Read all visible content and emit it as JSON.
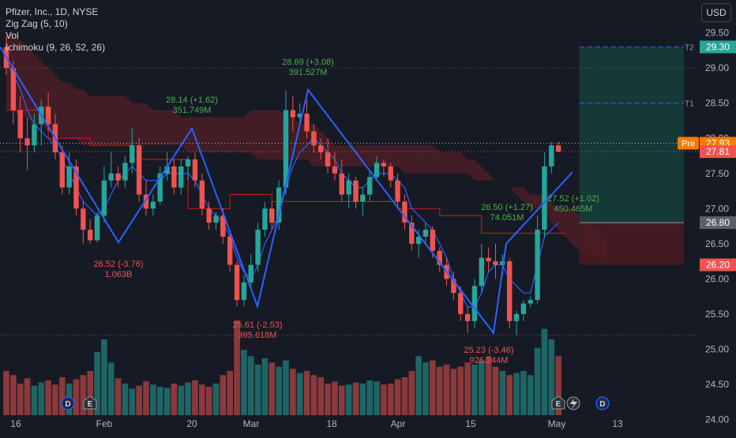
{
  "header": {
    "symbol_line": "Pfizer, Inc., 1D, NYSE",
    "indicators": [
      "Zig Zag (5, 10)",
      "Vol",
      "Ichimoku (9, 26, 52, 26)"
    ],
    "currency": "USD"
  },
  "colors": {
    "background": "#161a25",
    "up": "#26a69a",
    "down": "#ef5350",
    "zigzag": "#2962ff",
    "conversion": "#2962ff",
    "base": "#b71c1c",
    "cloud_bear": "#4a1f26",
    "cloud_bull": "#1b3d3a",
    "label_up": "#4caf50",
    "label_down": "#ef5350",
    "target_zone": "#15403a",
    "stop_zone": "#4a1b22"
  },
  "chart_data": {
    "type": "candlestick",
    "symbol": "Pfizer, Inc.",
    "interval": "1D",
    "exchange": "NYSE",
    "y_axis": {
      "ticks": [
        24.0,
        24.5,
        25.0,
        25.5,
        26.0,
        26.5,
        27.0,
        27.5,
        28.0,
        28.5,
        29.0,
        29.5
      ],
      "range": [
        23.95,
        29.9
      ]
    },
    "x_axis": {
      "tick_labels": [
        "16",
        "Feb",
        "20",
        "Mar",
        "18",
        "Apr",
        "15",
        "May",
        "13"
      ]
    },
    "price_labels": [
      {
        "text": "29.30",
        "value": 29.3,
        "type": "target"
      },
      {
        "text": "27.93",
        "value": 27.93,
        "type": "premarket",
        "tag": "Pre"
      },
      {
        "text": "27.81",
        "value": 27.81,
        "type": "last"
      },
      {
        "text": "26.80",
        "value": 26.8,
        "type": "entry"
      },
      {
        "text": "26.20",
        "value": 26.2,
        "type": "stop"
      }
    ],
    "position_tool": {
      "entry": 26.8,
      "t1": 28.5,
      "t2": 29.3,
      "stop": 26.2,
      "labels": [
        "T1",
        "T2"
      ]
    },
    "zigzag": [
      {
        "date": "2024-01-09",
        "price": 29.3
      },
      {
        "date": "2024-01-31",
        "price": 26.52
      },
      {
        "date": "2024-02-21",
        "price": 28.14
      },
      {
        "date": "2024-03-04",
        "price": 25.61
      },
      {
        "date": "2024-03-13",
        "price": 28.69
      },
      {
        "date": "2024-04-17",
        "price": 25.23
      },
      {
        "date": "2024-04-22",
        "price": 26.5
      },
      {
        "date": "2024-05-01",
        "price": 27.52
      }
    ],
    "zigzag_labels": [
      {
        "line1": "28.14 (+1.62)",
        "line2": "351.749M",
        "dir": "up"
      },
      {
        "line1": "28.69 (+3.08)",
        "line2": "391.527M",
        "dir": "up"
      },
      {
        "line1": "26.50 (+1.27)",
        "line2": "74.051M",
        "dir": "up"
      },
      {
        "line1": "26.52 (-3.76)",
        "line2": "1.063B",
        "dir": "down"
      },
      {
        "line1": "25.61 (-2.53)",
        "line2": "395.618M",
        "dir": "down"
      },
      {
        "line1": "25.23 (-3.46)",
        "line2": "926.244M",
        "dir": "down"
      },
      {
        "line1": "27.52 (+1.02)",
        "line2": "450.465M",
        "dir": "up"
      }
    ],
    "candles": [
      {
        "o": 29.3,
        "h": 29.45,
        "l": 28.9,
        "c": 29.0
      },
      {
        "o": 29.0,
        "h": 29.1,
        "l": 28.2,
        "c": 28.4
      },
      {
        "o": 28.4,
        "h": 28.6,
        "l": 27.8,
        "c": 28.0
      },
      {
        "o": 28.0,
        "h": 28.3,
        "l": 27.55,
        "c": 27.9
      },
      {
        "o": 27.9,
        "h": 28.35,
        "l": 27.8,
        "c": 28.2
      },
      {
        "o": 28.2,
        "h": 28.55,
        "l": 27.9,
        "c": 28.45
      },
      {
        "o": 28.45,
        "h": 28.65,
        "l": 28.1,
        "c": 28.2
      },
      {
        "o": 28.2,
        "h": 28.35,
        "l": 27.7,
        "c": 27.8
      },
      {
        "o": 27.8,
        "h": 27.9,
        "l": 27.2,
        "c": 27.3
      },
      {
        "o": 27.3,
        "h": 27.8,
        "l": 27.2,
        "c": 27.6
      },
      {
        "o": 27.6,
        "h": 27.7,
        "l": 26.9,
        "c": 27.0
      },
      {
        "o": 27.0,
        "h": 27.1,
        "l": 26.5,
        "c": 26.7
      },
      {
        "o": 26.7,
        "h": 26.85,
        "l": 26.5,
        "c": 26.55
      },
      {
        "o": 26.55,
        "h": 26.95,
        "l": 26.52,
        "c": 26.9
      },
      {
        "o": 26.9,
        "h": 27.6,
        "l": 26.8,
        "c": 27.4
      },
      {
        "o": 27.4,
        "h": 27.8,
        "l": 27.3,
        "c": 27.5
      },
      {
        "o": 27.5,
        "h": 27.6,
        "l": 27.3,
        "c": 27.4
      },
      {
        "o": 27.4,
        "h": 27.75,
        "l": 27.3,
        "c": 27.65
      },
      {
        "o": 27.65,
        "h": 28.14,
        "l": 27.5,
        "c": 27.9
      },
      {
        "o": 27.9,
        "h": 28.0,
        "l": 27.1,
        "c": 27.2
      },
      {
        "o": 27.2,
        "h": 27.4,
        "l": 26.9,
        "c": 27.0
      },
      {
        "o": 27.0,
        "h": 27.2,
        "l": 26.9,
        "c": 27.1
      },
      {
        "o": 27.1,
        "h": 27.6,
        "l": 27.05,
        "c": 27.5
      },
      {
        "o": 27.5,
        "h": 27.8,
        "l": 27.4,
        "c": 27.6
      },
      {
        "o": 27.6,
        "h": 27.7,
        "l": 27.2,
        "c": 27.3
      },
      {
        "o": 27.3,
        "h": 27.7,
        "l": 27.2,
        "c": 27.6
      },
      {
        "o": 27.6,
        "h": 27.75,
        "l": 27.4,
        "c": 27.7
      },
      {
        "o": 27.7,
        "h": 27.8,
        "l": 27.3,
        "c": 27.4
      },
      {
        "o": 27.4,
        "h": 27.5,
        "l": 26.9,
        "c": 27.0
      },
      {
        "o": 27.0,
        "h": 27.1,
        "l": 26.7,
        "c": 26.8
      },
      {
        "o": 26.8,
        "h": 26.95,
        "l": 26.7,
        "c": 26.9
      },
      {
        "o": 26.9,
        "h": 27.0,
        "l": 26.5,
        "c": 26.6
      },
      {
        "o": 26.6,
        "h": 26.65,
        "l": 26.1,
        "c": 26.2
      },
      {
        "o": 26.2,
        "h": 26.25,
        "l": 25.61,
        "c": 25.7
      },
      {
        "o": 25.7,
        "h": 26.05,
        "l": 25.61,
        "c": 25.95
      },
      {
        "o": 25.95,
        "h": 26.35,
        "l": 25.85,
        "c": 26.2
      },
      {
        "o": 26.2,
        "h": 26.8,
        "l": 26.1,
        "c": 26.7
      },
      {
        "o": 26.7,
        "h": 27.1,
        "l": 26.6,
        "c": 27.0
      },
      {
        "o": 27.0,
        "h": 27.1,
        "l": 26.7,
        "c": 26.8
      },
      {
        "o": 26.8,
        "h": 27.4,
        "l": 26.7,
        "c": 27.3
      },
      {
        "o": 27.3,
        "h": 28.69,
        "l": 27.2,
        "c": 28.4
      },
      {
        "o": 28.4,
        "h": 28.6,
        "l": 28.1,
        "c": 28.3
      },
      {
        "o": 28.3,
        "h": 28.5,
        "l": 28.2,
        "c": 28.35
      },
      {
        "o": 28.35,
        "h": 28.55,
        "l": 28.0,
        "c": 28.1
      },
      {
        "o": 28.1,
        "h": 28.2,
        "l": 27.8,
        "c": 27.9
      },
      {
        "o": 27.9,
        "h": 28.0,
        "l": 27.7,
        "c": 27.8
      },
      {
        "o": 27.8,
        "h": 28.0,
        "l": 27.5,
        "c": 27.6
      },
      {
        "o": 27.6,
        "h": 27.8,
        "l": 27.4,
        "c": 27.5
      },
      {
        "o": 27.5,
        "h": 27.7,
        "l": 27.1,
        "c": 27.2
      },
      {
        "o": 27.2,
        "h": 27.5,
        "l": 27.0,
        "c": 27.4
      },
      {
        "o": 27.4,
        "h": 27.45,
        "l": 27.0,
        "c": 27.1
      },
      {
        "o": 27.1,
        "h": 27.3,
        "l": 26.9,
        "c": 27.2
      },
      {
        "o": 27.2,
        "h": 27.55,
        "l": 27.1,
        "c": 27.45
      },
      {
        "o": 27.45,
        "h": 27.75,
        "l": 27.4,
        "c": 27.65
      },
      {
        "o": 27.65,
        "h": 27.7,
        "l": 27.45,
        "c": 27.6
      },
      {
        "o": 27.6,
        "h": 27.65,
        "l": 27.3,
        "c": 27.4
      },
      {
        "o": 27.4,
        "h": 27.5,
        "l": 27.0,
        "c": 27.1
      },
      {
        "o": 27.1,
        "h": 27.2,
        "l": 26.7,
        "c": 26.8
      },
      {
        "o": 26.8,
        "h": 26.9,
        "l": 26.4,
        "c": 26.5
      },
      {
        "o": 26.5,
        "h": 26.7,
        "l": 26.3,
        "c": 26.6
      },
      {
        "o": 26.6,
        "h": 26.8,
        "l": 26.5,
        "c": 26.7
      },
      {
        "o": 26.7,
        "h": 26.75,
        "l": 26.3,
        "c": 26.4
      },
      {
        "o": 26.4,
        "h": 26.45,
        "l": 26.1,
        "c": 26.2
      },
      {
        "o": 26.2,
        "h": 26.3,
        "l": 25.9,
        "c": 26.0
      },
      {
        "o": 26.0,
        "h": 26.1,
        "l": 25.7,
        "c": 25.8
      },
      {
        "o": 25.8,
        "h": 25.9,
        "l": 25.4,
        "c": 25.5
      },
      {
        "o": 25.5,
        "h": 25.6,
        "l": 25.23,
        "c": 25.4
      },
      {
        "o": 25.4,
        "h": 26.0,
        "l": 25.3,
        "c": 25.9
      },
      {
        "o": 25.9,
        "h": 26.5,
        "l": 25.8,
        "c": 26.3
      },
      {
        "o": 26.3,
        "h": 26.45,
        "l": 26.1,
        "c": 26.25
      },
      {
        "o": 26.25,
        "h": 26.5,
        "l": 26.0,
        "c": 26.2
      },
      {
        "o": 26.2,
        "h": 26.35,
        "l": 26.05,
        "c": 26.25
      },
      {
        "o": 26.25,
        "h": 26.3,
        "l": 25.3,
        "c": 25.4
      },
      {
        "o": 25.4,
        "h": 25.55,
        "l": 25.2,
        "c": 25.5
      },
      {
        "o": 25.5,
        "h": 25.7,
        "l": 25.4,
        "c": 25.65
      },
      {
        "o": 25.65,
        "h": 25.75,
        "l": 25.6,
        "c": 25.7
      },
      {
        "o": 25.7,
        "h": 26.9,
        "l": 25.65,
        "c": 26.7
      },
      {
        "o": 26.7,
        "h": 27.8,
        "l": 26.6,
        "c": 27.6
      },
      {
        "o": 27.6,
        "h": 27.95,
        "l": 27.5,
        "c": 27.9
      },
      {
        "o": 27.9,
        "h": 27.95,
        "l": 27.8,
        "c": 27.81
      }
    ],
    "volume": [
      420,
      380,
      300,
      350,
      280,
      310,
      330,
      290,
      360,
      300,
      340,
      380,
      420,
      600,
      720,
      500,
      350,
      300,
      250,
      280,
      320,
      290,
      270,
      260,
      300,
      280,
      310,
      330,
      290,
      270,
      300,
      380,
      420,
      900,
      620,
      560,
      480,
      540,
      500,
      460,
      520,
      440,
      400,
      420,
      380,
      360,
      300,
      320,
      280,
      290,
      310,
      300,
      330,
      320,
      290,
      300,
      340,
      360,
      420,
      560,
      500,
      520,
      460,
      480,
      440,
      460,
      500,
      480,
      520,
      560,
      460,
      420,
      380,
      400,
      420,
      380,
      640,
      820,
      720,
      560
    ],
    "volume_colors": "derived from candle direction",
    "conversion_line": [
      29.1,
      28.9,
      28.7,
      28.4,
      28.2,
      28.1,
      28.0,
      27.9,
      27.7,
      27.5,
      27.3,
      27.1,
      27.0,
      26.9,
      27.0,
      27.2,
      27.4,
      27.5,
      27.6,
      27.5,
      27.4,
      27.4,
      27.4,
      27.5,
      27.5,
      27.5,
      27.5,
      27.4,
      27.2,
      27.0,
      26.9,
      26.8,
      26.6,
      26.3,
      26.1,
      26.0,
      26.2,
      26.5,
      26.7,
      26.9,
      27.3,
      27.6,
      27.8,
      27.9,
      28.0,
      27.9,
      27.8,
      27.7,
      27.5,
      27.4,
      27.3,
      27.3,
      27.4,
      27.5,
      27.5,
      27.5,
      27.4,
      27.3,
      27.0,
      26.9,
      26.8,
      26.7,
      26.5,
      26.3,
      26.0,
      25.8,
      25.6,
      25.6,
      25.8,
      26.1,
      26.2,
      26.2,
      26.0,
      25.9,
      25.8,
      25.8,
      26.2,
      26.6,
      26.7,
      26.8
    ],
    "base_line_segments": [
      {
        "from": 0,
        "to": 6,
        "value": 28.4
      },
      {
        "from": 6,
        "to": 12,
        "value": 28.0
      },
      {
        "from": 12,
        "to": 18,
        "value": 27.9
      },
      {
        "from": 18,
        "to": 26,
        "value": 27.7
      },
      {
        "from": 26,
        "to": 32,
        "value": 27.0
      },
      {
        "from": 32,
        "to": 38,
        "value": 27.2
      },
      {
        "from": 38,
        "to": 44,
        "value": 27.1
      },
      {
        "from": 44,
        "to": 56,
        "value": 27.1
      },
      {
        "from": 56,
        "to": 62,
        "value": 27.0
      },
      {
        "from": 62,
        "to": 68,
        "value": 26.9
      },
      {
        "from": 68,
        "to": 80,
        "value": 26.65
      }
    ],
    "cloud_upper": [
      29.5,
      29.5,
      29.4,
      29.3,
      29.2,
      29.1,
      29.0,
      28.9,
      28.8,
      28.8,
      28.7,
      28.7,
      28.6,
      28.6,
      28.6,
      28.6,
      28.6,
      28.6,
      28.5,
      28.5,
      28.5,
      28.4,
      28.4,
      28.4,
      28.4,
      28.3,
      28.3,
      28.3,
      28.3,
      28.3,
      28.3,
      28.3,
      28.3,
      28.3,
      28.3,
      28.4,
      28.4,
      28.4,
      28.4,
      28.4,
      28.3,
      28.3,
      28.2,
      28.2,
      28.2,
      28.1,
      28.0,
      27.9,
      27.9,
      27.9,
      27.9,
      27.9,
      27.9,
      27.9,
      27.9,
      27.9,
      27.9,
      27.9,
      27.9,
      27.9,
      27.9,
      27.9,
      27.8,
      27.8,
      27.8,
      27.8,
      27.7,
      27.7,
      27.6,
      27.5,
      27.4,
      27.3,
      27.3,
      27.2,
      27.1,
      27.0,
      27.0,
      27.0,
      26.8,
      26.7,
      26.6,
      26.5,
      26.4,
      26.4,
      26.3,
      26.3,
      26.2
    ],
    "cloud_lower": [
      28.4,
      28.4,
      28.3,
      28.3,
      28.2,
      28.2,
      28.1,
      28.1,
      28.0,
      28.0,
      28.0,
      27.9,
      27.9,
      27.9,
      27.9,
      27.9,
      27.9,
      27.9,
      27.9,
      27.9,
      27.9,
      27.9,
      27.9,
      27.9,
      27.9,
      27.9,
      27.8,
      27.8,
      27.8,
      27.8,
      27.8,
      27.8,
      27.8,
      27.8,
      27.8,
      27.8,
      27.7,
      27.7,
      27.7,
      27.7,
      27.7,
      27.7,
      27.7,
      27.7,
      27.6,
      27.6,
      27.6,
      27.6,
      27.6,
      27.6,
      27.6,
      27.6,
      27.6,
      27.6,
      27.6,
      27.6,
      27.6,
      27.5,
      27.5,
      27.5,
      27.5,
      27.5,
      27.5,
      27.5,
      27.5,
      27.5,
      27.5,
      27.4,
      27.4,
      27.4,
      27.4,
      27.3,
      27.3,
      27.3,
      27.3,
      27.2,
      27.2,
      27.2,
      27.1,
      27.0,
      27.0,
      27.0,
      26.9,
      26.8,
      26.8,
      26.7,
      26.6
    ],
    "event_markers": [
      {
        "label": "D"
      },
      {
        "label": "E"
      },
      {
        "label": "E"
      },
      {
        "label": "D"
      }
    ],
    "volume_pane": true,
    "grid": false,
    "legend_position": "top-left"
  }
}
